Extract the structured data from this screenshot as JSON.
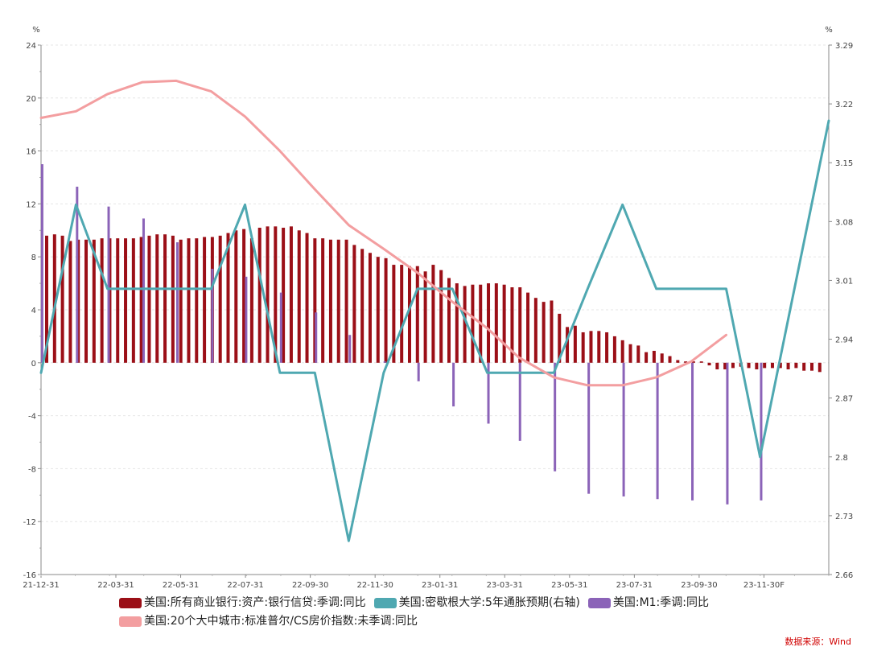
{
  "chart_data": {
    "type": "bar",
    "left_unit": "%",
    "right_unit": "%",
    "left_axis": {
      "min": -16,
      "max": 24,
      "ticks": [
        -16,
        -12,
        -8,
        -4,
        0,
        4,
        8,
        12,
        16,
        20,
        24
      ]
    },
    "right_axis": {
      "min": 2.66,
      "max": 3.29,
      "ticks": [
        "2.66",
        "2.73",
        "2.8",
        "2.87",
        "2.94",
        "3.01",
        "3.08",
        "3.15",
        "3.22",
        "3.29"
      ]
    },
    "x_ticks": [
      "21-12-31",
      "22-03-31",
      "22-05-31",
      "22-07-31",
      "22-09-30",
      "22-11-30",
      "23-01-31",
      "23-03-31",
      "23-05-31",
      "23-07-31",
      "23-09-30",
      "23-11-30F"
    ],
    "x_range": [
      "2021-12-31",
      "2023-11-30"
    ],
    "grid": true,
    "series": [
      {
        "name": "美国:所有商业银行:资产:银行信贷:季调:同比",
        "kind": "bar",
        "axis": "left",
        "color": "#9b0f17",
        "points": [
          [
            "2022-01-05",
            9.6
          ],
          [
            "2022-01-12",
            9.7
          ],
          [
            "2022-01-19",
            9.6
          ],
          [
            "2022-01-26",
            9.2
          ],
          [
            "2022-02-02",
            9.3
          ],
          [
            "2022-02-09",
            9.3
          ],
          [
            "2022-02-16",
            9.3
          ],
          [
            "2022-02-23",
            9.4
          ],
          [
            "2022-03-02",
            9.4
          ],
          [
            "2022-03-09",
            9.4
          ],
          [
            "2022-03-16",
            9.4
          ],
          [
            "2022-03-23",
            9.4
          ],
          [
            "2022-03-30",
            9.5
          ],
          [
            "2022-04-06",
            9.6
          ],
          [
            "2022-04-13",
            9.7
          ],
          [
            "2022-04-20",
            9.7
          ],
          [
            "2022-04-27",
            9.6
          ],
          [
            "2022-05-04",
            9.3
          ],
          [
            "2022-05-11",
            9.4
          ],
          [
            "2022-05-18",
            9.4
          ],
          [
            "2022-05-25",
            9.5
          ],
          [
            "2022-06-01",
            9.5
          ],
          [
            "2022-06-08",
            9.6
          ],
          [
            "2022-06-15",
            9.8
          ],
          [
            "2022-06-22",
            10.0
          ],
          [
            "2022-06-29",
            10.1
          ],
          [
            "2022-07-06",
            9.4
          ],
          [
            "2022-07-13",
            10.2
          ],
          [
            "2022-07-20",
            10.3
          ],
          [
            "2022-07-27",
            10.3
          ],
          [
            "2022-08-03",
            10.2
          ],
          [
            "2022-08-10",
            10.3
          ],
          [
            "2022-08-17",
            10.0
          ],
          [
            "2022-08-24",
            9.8
          ],
          [
            "2022-08-31",
            9.4
          ],
          [
            "2022-09-07",
            9.4
          ],
          [
            "2022-09-14",
            9.3
          ],
          [
            "2022-09-21",
            9.3
          ],
          [
            "2022-09-28",
            9.3
          ],
          [
            "2022-10-05",
            8.9
          ],
          [
            "2022-10-12",
            8.6
          ],
          [
            "2022-10-19",
            8.3
          ],
          [
            "2022-10-26",
            8.0
          ],
          [
            "2022-11-02",
            7.9
          ],
          [
            "2022-11-09",
            7.4
          ],
          [
            "2022-11-16",
            7.4
          ],
          [
            "2022-11-23",
            7.3
          ],
          [
            "2022-11-30",
            7.3
          ],
          [
            "2022-12-07",
            6.9
          ],
          [
            "2022-12-14",
            7.4
          ],
          [
            "2022-12-21",
            7.0
          ],
          [
            "2022-12-28",
            6.4
          ],
          [
            "2023-01-04",
            6.0
          ],
          [
            "2023-01-11",
            5.8
          ],
          [
            "2023-01-18",
            5.9
          ],
          [
            "2023-01-25",
            5.9
          ],
          [
            "2023-02-01",
            6.0
          ],
          [
            "2023-02-08",
            6.0
          ],
          [
            "2023-02-15",
            5.9
          ],
          [
            "2023-02-22",
            5.7
          ],
          [
            "2023-03-01",
            5.7
          ],
          [
            "2023-03-08",
            5.3
          ],
          [
            "2023-03-15",
            4.9
          ],
          [
            "2023-03-22",
            4.6
          ],
          [
            "2023-03-29",
            4.7
          ],
          [
            "2023-04-05",
            3.7
          ],
          [
            "2023-04-12",
            2.7
          ],
          [
            "2023-04-19",
            2.8
          ],
          [
            "2023-04-26",
            2.3
          ],
          [
            "2023-05-03",
            2.4
          ],
          [
            "2023-05-10",
            2.4
          ],
          [
            "2023-05-17",
            2.3
          ],
          [
            "2023-05-24",
            2.0
          ],
          [
            "2023-05-31",
            1.7
          ],
          [
            "2023-06-07",
            1.4
          ],
          [
            "2023-06-14",
            1.3
          ],
          [
            "2023-06-21",
            0.8
          ],
          [
            "2023-06-28",
            0.9
          ],
          [
            "2023-07-05",
            0.7
          ],
          [
            "2023-07-12",
            0.5
          ],
          [
            "2023-07-19",
            0.2
          ],
          [
            "2023-07-26",
            0.1
          ],
          [
            "2023-08-02",
            0.1
          ],
          [
            "2023-08-09",
            0.1
          ],
          [
            "2023-08-16",
            -0.2
          ],
          [
            "2023-08-23",
            -0.5
          ],
          [
            "2023-08-30",
            -0.5
          ],
          [
            "2023-09-06",
            -0.4
          ],
          [
            "2023-09-13",
            -0.3
          ],
          [
            "2023-09-20",
            -0.4
          ],
          [
            "2023-09-27",
            -0.5
          ],
          [
            "2023-10-04",
            -0.4
          ],
          [
            "2023-10-11",
            -0.4
          ],
          [
            "2023-10-18",
            -0.4
          ],
          [
            "2023-10-25",
            -0.5
          ],
          [
            "2023-11-01",
            -0.4
          ],
          [
            "2023-11-08",
            -0.6
          ],
          [
            "2023-11-15",
            -0.6
          ],
          [
            "2023-11-22",
            -0.7
          ]
        ]
      },
      {
        "name": "美国:密歇根大学:5年通胀预期(右轴)",
        "kind": "line",
        "axis": "right",
        "color": "#4fa8b1",
        "points": [
          [
            "2021-12-31",
            2.9
          ],
          [
            "2022-01-31",
            3.1
          ],
          [
            "2022-02-28",
            3.0
          ],
          [
            "2022-03-31",
            3.0
          ],
          [
            "2022-04-30",
            3.0
          ],
          [
            "2022-05-31",
            3.0
          ],
          [
            "2022-06-30",
            3.1
          ],
          [
            "2022-07-31",
            2.9
          ],
          [
            "2022-08-31",
            2.9
          ],
          [
            "2022-09-30",
            2.7
          ],
          [
            "2022-10-31",
            2.9
          ],
          [
            "2022-11-30",
            3.0
          ],
          [
            "2022-12-31",
            3.0
          ],
          [
            "2023-01-31",
            2.9
          ],
          [
            "2023-02-28",
            2.9
          ],
          [
            "2023-03-31",
            2.9
          ],
          [
            "2023-04-30",
            3.0
          ],
          [
            "2023-05-31",
            3.1
          ],
          [
            "2023-06-30",
            3.0
          ],
          [
            "2023-07-31",
            3.0
          ],
          [
            "2023-08-31",
            3.0
          ],
          [
            "2023-09-30",
            2.8
          ],
          [
            "2023-11-30",
            3.2
          ]
        ]
      },
      {
        "name": "美国:M1:季调:同比",
        "kind": "bar",
        "axis": "left",
        "color": "#8b63b8",
        "points": [
          [
            "2022-01-01",
            15.0
          ],
          [
            "2022-02-01",
            13.3
          ],
          [
            "2022-03-01",
            11.8
          ],
          [
            "2022-04-01",
            10.9
          ],
          [
            "2022-05-01",
            9.1
          ],
          [
            "2022-06-01",
            7.1
          ],
          [
            "2022-07-01",
            6.5
          ],
          [
            "2022-08-01",
            5.3
          ],
          [
            "2022-09-01",
            3.8
          ],
          [
            "2022-10-01",
            2.1
          ],
          [
            "2022-11-01",
            0.1
          ],
          [
            "2022-12-01",
            -1.4
          ],
          [
            "2023-01-01",
            -3.3
          ],
          [
            "2023-02-01",
            -4.6
          ],
          [
            "2023-03-01",
            -5.9
          ],
          [
            "2023-04-01",
            -8.2
          ],
          [
            "2023-05-01",
            -9.9
          ],
          [
            "2023-06-01",
            -10.1
          ],
          [
            "2023-07-01",
            -10.3
          ],
          [
            "2023-08-01",
            -10.4
          ],
          [
            "2023-09-01",
            -10.7
          ],
          [
            "2023-10-01",
            -10.4
          ]
        ]
      },
      {
        "name": "美国:20个大中城市:标准普尔/CS房价指数:未季调:同比",
        "kind": "line",
        "axis": "left",
        "color": "#f39ea0",
        "points": [
          [
            "2021-12-31",
            18.5
          ],
          [
            "2022-01-31",
            19.0
          ],
          [
            "2022-02-28",
            20.3
          ],
          [
            "2022-03-31",
            21.2
          ],
          [
            "2022-04-30",
            21.3
          ],
          [
            "2022-05-31",
            20.5
          ],
          [
            "2022-06-30",
            18.6
          ],
          [
            "2022-07-31",
            16.0
          ],
          [
            "2022-08-31",
            13.1
          ],
          [
            "2022-09-30",
            10.4
          ],
          [
            "2022-10-31",
            8.6
          ],
          [
            "2022-11-30",
            6.8
          ],
          [
            "2022-12-31",
            4.6
          ],
          [
            "2023-01-31",
            2.6
          ],
          [
            "2023-02-28",
            0.4
          ],
          [
            "2023-03-31",
            -1.1
          ],
          [
            "2023-04-30",
            -1.7
          ],
          [
            "2023-05-31",
            -1.7
          ],
          [
            "2023-06-30",
            -1.1
          ],
          [
            "2023-07-31",
            0.1
          ],
          [
            "2023-08-31",
            2.1
          ]
        ]
      }
    ],
    "legend": {
      "position": "bottom",
      "rows": [
        [
          {
            "label": "美国:所有商业银行:资产:银行信贷:季调:同比",
            "color": "#9b0f17"
          },
          {
            "label": "美国:密歇根大学:5年通胀预期(右轴)",
            "color": "#4fa8b1"
          },
          {
            "label": "美国:M1:季调:同比",
            "color": "#8b63b8"
          }
        ],
        [
          {
            "label": "美国:20个大中城市:标准普尔/CS房价指数:未季调:同比",
            "color": "#f39ea0"
          }
        ]
      ]
    },
    "source": "数据来源：Wind"
  }
}
